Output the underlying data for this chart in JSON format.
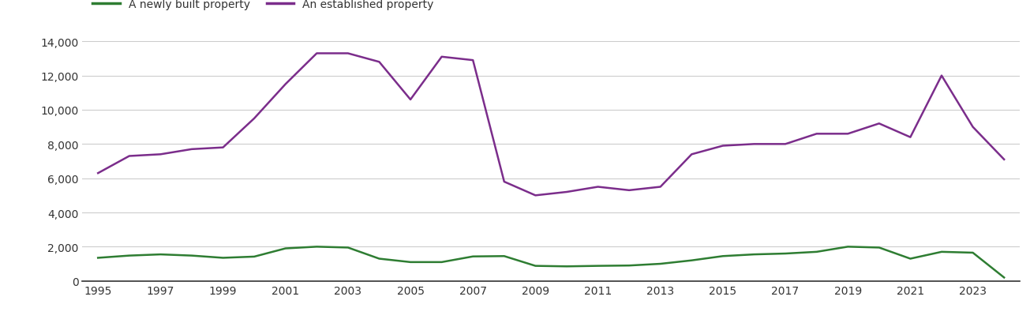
{
  "years": [
    1995,
    1996,
    1997,
    1998,
    1999,
    2000,
    2001,
    2002,
    2003,
    2004,
    2005,
    2006,
    2007,
    2008,
    2009,
    2010,
    2011,
    2012,
    2013,
    2014,
    2015,
    2016,
    2017,
    2018,
    2019,
    2020,
    2021,
    2022,
    2023,
    2024
  ],
  "new_built": [
    1350,
    1480,
    1550,
    1480,
    1350,
    1420,
    1900,
    2000,
    1950,
    1300,
    1100,
    1100,
    1430,
    1450,
    880,
    850,
    880,
    900,
    1000,
    1200,
    1450,
    1550,
    1600,
    1700,
    2000,
    1950,
    1300,
    1700,
    1650,
    200
  ],
  "established": [
    6300,
    7300,
    7400,
    7700,
    7800,
    9500,
    11500,
    13300,
    13300,
    12800,
    10600,
    13100,
    12900,
    5800,
    5000,
    5200,
    5500,
    5300,
    5500,
    7400,
    7900,
    8000,
    8000,
    8600,
    8600,
    9200,
    8400,
    12000,
    9000,
    7100
  ],
  "new_color": "#2e7d32",
  "estab_color": "#7b2d8b",
  "new_label": "A newly built property",
  "estab_label": "An established property",
  "ylim": [
    0,
    14000
  ],
  "yticks": [
    0,
    2000,
    4000,
    6000,
    8000,
    10000,
    12000,
    14000
  ],
  "xtick_years": [
    1995,
    1997,
    1999,
    2001,
    2003,
    2005,
    2007,
    2009,
    2011,
    2013,
    2015,
    2017,
    2019,
    2021,
    2023
  ],
  "xlim_left": 1994.5,
  "xlim_right": 2024.5,
  "background_color": "#ffffff",
  "grid_color": "#cccccc",
  "line_width": 1.8,
  "legend_fontsize": 10,
  "tick_fontsize": 10
}
